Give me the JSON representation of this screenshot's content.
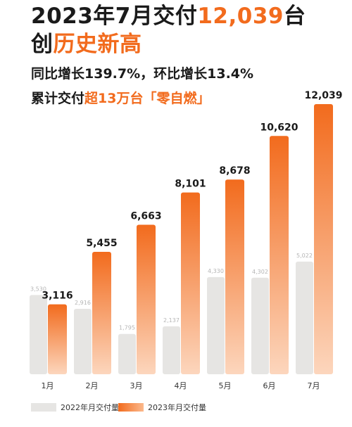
{
  "headline": {
    "line1_prefix": "2023年7月交付",
    "line1_highlight": "12,039",
    "line1_suffix": "台",
    "line2_prefix": "创",
    "line2_highlight": "历史新高"
  },
  "subtitle": {
    "line1": "同比增长139.7%，环比增长13.4%",
    "line2_prefix": "累计交付",
    "line2_highlight": "超13万台「零自燃」"
  },
  "legend": {
    "series_2022": "2022年月交付量",
    "series_2023": "2023年月交付量"
  },
  "colors": {
    "accent": "#f26b1d",
    "series_2022": "#e6e5e3",
    "text": "#1a1a1a"
  },
  "chart_data": {
    "type": "bar",
    "categories": [
      "1月",
      "2月",
      "3月",
      "4月",
      "5月",
      "6月",
      "7月"
    ],
    "series": [
      {
        "name": "2022年月交付量",
        "values": [
          3530,
          2916,
          1795,
          2137,
          4330,
          4302,
          5022
        ],
        "labels": [
          "3,530",
          "2,916",
          "1,795",
          "2,137",
          "4,330",
          "4,302",
          "5,022"
        ]
      },
      {
        "name": "2023年月交付量",
        "values": [
          3116,
          5455,
          6663,
          8101,
          8678,
          10620,
          12039
        ],
        "labels": [
          "3,116",
          "5,455",
          "6,663",
          "8,101",
          "8,678",
          "10,620",
          "12,039"
        ]
      }
    ],
    "ylim": [
      0,
      12039
    ],
    "grid": false,
    "legend_position": "bottom-left"
  }
}
